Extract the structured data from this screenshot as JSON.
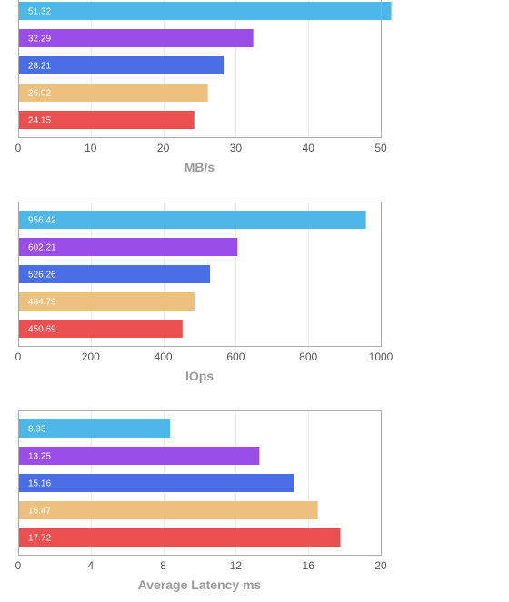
{
  "chart_data": [
    {
      "type": "bar",
      "orientation": "horizontal",
      "xlabel": "MB/s",
      "xlim": [
        0,
        50
      ],
      "ticks": [
        0,
        10,
        20,
        30,
        40,
        50
      ],
      "grid": true,
      "values": [
        51.32,
        32.29,
        28.21,
        26.02,
        24.15
      ],
      "labels": [
        "51.32",
        "32.29",
        "28.21",
        "26.02",
        "24.15"
      ],
      "colors": [
        "#4db8e8",
        "#9a4de8",
        "#4a6ee6",
        "#ecc07f",
        "#eb4f4f"
      ]
    },
    {
      "type": "bar",
      "orientation": "horizontal",
      "xlabel": "IOps",
      "xlim": [
        0,
        1000
      ],
      "ticks": [
        0,
        200,
        400,
        600,
        800,
        1000
      ],
      "grid": true,
      "values": [
        956.42,
        602.21,
        526.26,
        484.79,
        450.69
      ],
      "labels": [
        "956.42",
        "602.21",
        "526.26",
        "484.79",
        "450.69"
      ],
      "colors": [
        "#4db8e8",
        "#9a4de8",
        "#4a6ee6",
        "#ecc07f",
        "#eb4f4f"
      ]
    },
    {
      "type": "bar",
      "orientation": "horizontal",
      "xlabel": "Average Latency ms",
      "xlim": [
        0,
        20
      ],
      "ticks": [
        0,
        4,
        8,
        12,
        16,
        20
      ],
      "grid": true,
      "values": [
        8.33,
        13.25,
        15.16,
        16.47,
        17.72
      ],
      "labels": [
        "8.33",
        "13.25",
        "15.16",
        "16.47",
        "17.72"
      ],
      "colors": [
        "#4db8e8",
        "#9a4de8",
        "#4a6ee6",
        "#ecc07f",
        "#eb4f4f"
      ]
    }
  ]
}
